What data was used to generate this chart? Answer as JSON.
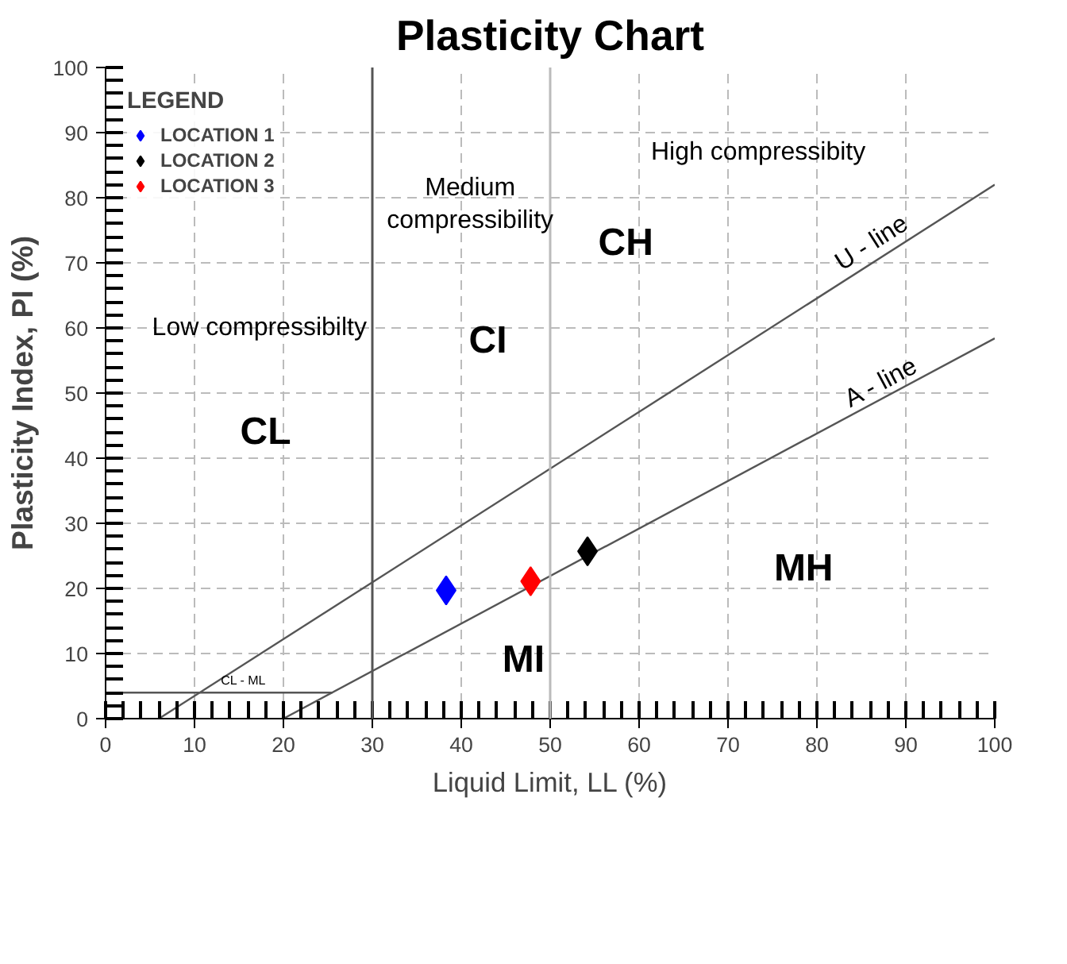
{
  "chart_data": {
    "type": "scatter",
    "title": "Plasticity Chart",
    "xlabel": "Liquid Limit, LL (%)",
    "ylabel": "Plasticity Index, PI (%)",
    "xlim": [
      0,
      100
    ],
    "ylim": [
      0,
      100
    ],
    "xticks": [
      0,
      10,
      20,
      30,
      40,
      50,
      60,
      70,
      80,
      90,
      100
    ],
    "yticks": [
      0,
      10,
      20,
      30,
      40,
      50,
      60,
      70,
      80,
      90,
      100
    ],
    "grid": true,
    "legend": "top left",
    "legend_title": "LEGEND",
    "marker": "diamond",
    "series": [
      {
        "type": "line",
        "marker": "none",
        "color": "#555555",
        "x": [
          6,
          100
        ],
        "values": [
          0,
          82
        ]
      },
      {
        "type": "line",
        "marker": "none",
        "color": "#555555",
        "x": [
          20,
          100
        ],
        "values": [
          0,
          58.4
        ]
      },
      {
        "type": "line",
        "marker": "none",
        "color": "#555555",
        "x": [
          0,
          25.5
        ],
        "values": [
          4,
          4
        ]
      },
      {
        "name": "LOCATION 1",
        "color": "#0000ff",
        "x": [
          38.3
        ],
        "values": [
          19.7
        ]
      },
      {
        "name": "LOCATION 2",
        "color": "#000000",
        "x": [
          54.2
        ],
        "values": [
          25.7
        ]
      },
      {
        "name": "LOCATION 3",
        "color": "#ff0000",
        "x": [
          47.8
        ],
        "values": [
          21.1
        ]
      }
    ],
    "ref_lines": [
      {
        "axis": "x",
        "value": 30,
        "color": "#555555"
      },
      {
        "axis": "x",
        "value": 50,
        "color": "#bbbbbb"
      }
    ],
    "annotations": [
      "Low compressibilty",
      "Medium\ncompressibility",
      "High compressibity",
      "CH",
      "CI",
      "CL",
      "MH",
      "MI",
      {
        "text": "CL - ML",
        "x": 15.5,
        "y": 4
      },
      {
        "text": "U - line",
        "x": 87,
        "y": 70.5
      },
      {
        "text": "A - line",
        "x": 88,
        "y": 49
      }
    ]
  }
}
